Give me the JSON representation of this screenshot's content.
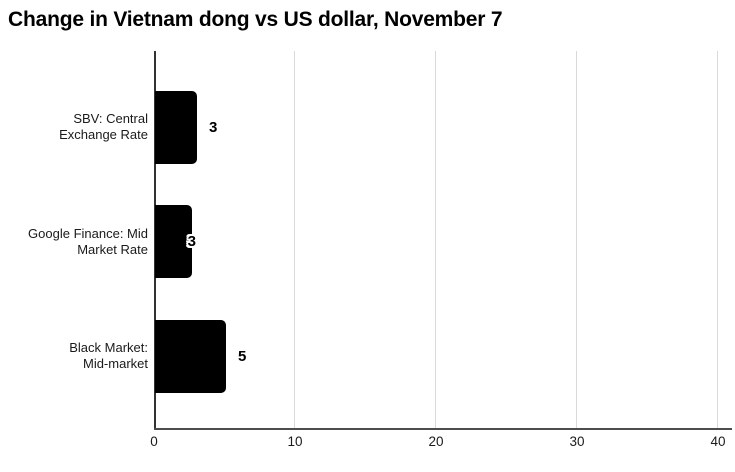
{
  "chart_data": {
    "type": "bar",
    "orientation": "horizontal",
    "title": "Change in Vietnam dong vs US dollar, November 7",
    "categories": [
      "SBV: Central Exchange Rate",
      "Google Finance: Mid Market Rate",
      "Black Market: Mid-market"
    ],
    "category_label_lines": [
      [
        "SBV: Central",
        "Exchange Rate"
      ],
      [
        "Google Finance: Mid",
        "Market Rate"
      ],
      [
        "Black Market:",
        "Mid-market"
      ]
    ],
    "values": [
      3,
      2.6,
      5
    ],
    "value_labels": [
      "3",
      "3",
      "5"
    ],
    "value_label_placement": [
      "outside",
      "overlap",
      "outside"
    ],
    "xlabel": "",
    "ylabel": "",
    "xlim": [
      0,
      40
    ],
    "xticks": [
      "0",
      "10",
      "20",
      "30",
      "40"
    ],
    "grid": "vertical-gridlines",
    "legend": "none",
    "colors": {
      "bar": "#000000",
      "gridline": "#d9d9d9",
      "axis_line": "#333333",
      "baseline": "#4d4d4d",
      "text": "#1a1a1a",
      "background": "#ffffff"
    }
  }
}
